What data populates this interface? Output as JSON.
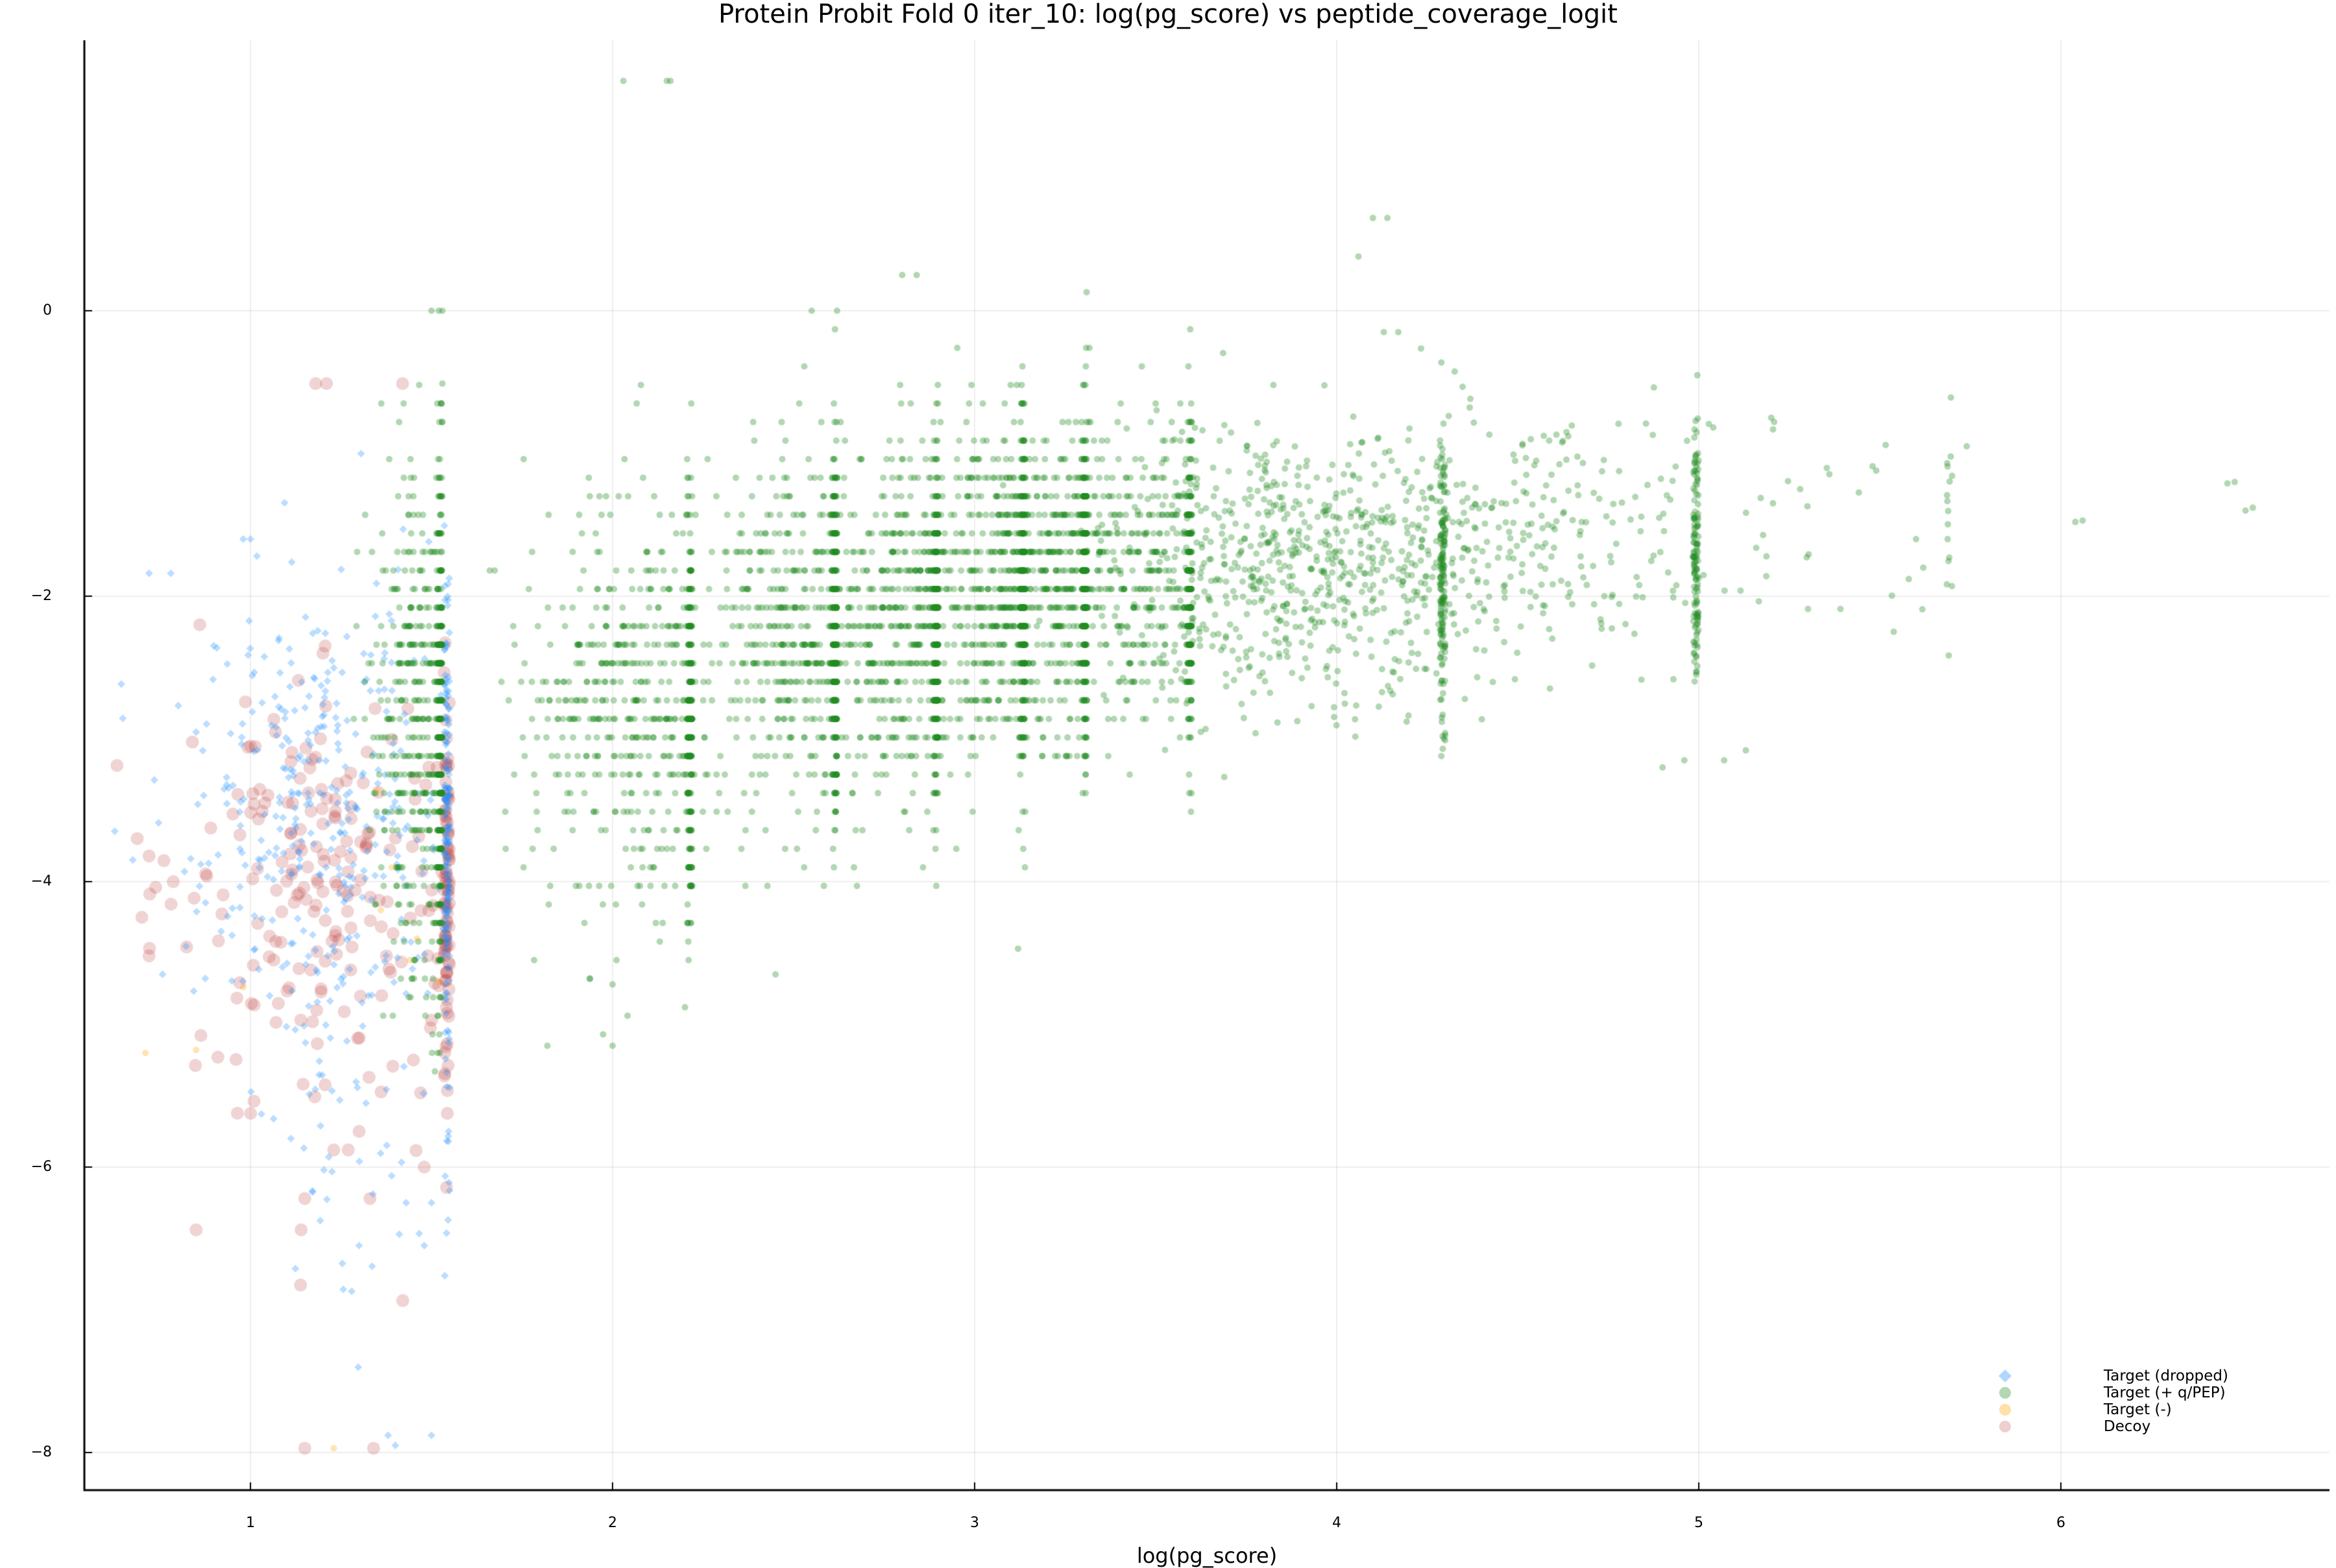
{
  "chart_data": {
    "type": "scatter",
    "title": "Protein Probit Fold 0 iter_10: log(pg_score) vs peptide_coverage_logit",
    "xlabel": "log(pg_score)",
    "ylabel": "",
    "xlim": [
      0.55,
      6.75
    ],
    "ylim": [
      -8.3,
      1.9
    ],
    "xticks": [
      1,
      2,
      3,
      4,
      5,
      6
    ],
    "yticks": [
      0,
      -2,
      -4,
      -6,
      -8
    ],
    "xtick_labels": [
      "1",
      "2",
      "3",
      "4",
      "5",
      "6"
    ],
    "ytick_labels": [
      "0",
      "−2",
      "−4",
      "−6",
      "−8"
    ],
    "grid": true,
    "legend_position": "bottom-right",
    "series": [
      {
        "name": "Target (dropped)",
        "marker": "diamond",
        "color": "#1e90ff",
        "alpha": 0.3,
        "size": 6,
        "approx_count": 600,
        "x_range": [
          0.72,
          1.55
        ],
        "y_range": [
          -7.95,
          -1.6
        ],
        "clusters": [
          {
            "cx": 1.2,
            "cy": -3.6,
            "sx": 0.2,
            "sy": 0.9,
            "n": 520,
            "xmax": 1.55
          },
          {
            "cx": 1.3,
            "cy": -5.8,
            "sx": 0.15,
            "sy": 0.6,
            "n": 40,
            "xmax": 1.55
          }
        ],
        "points": [
          [
            0.72,
            -1.84
          ],
          [
            0.78,
            -1.84
          ],
          [
            0.98,
            -1.6
          ],
          [
            1.0,
            -1.6
          ],
          [
            1.38,
            -7.88
          ],
          [
            1.5,
            -7.88
          ],
          [
            1.4,
            -7.95
          ],
          [
            1.43,
            -6.25
          ],
          [
            1.5,
            -6.25
          ],
          [
            1.48,
            -6.55
          ],
          [
            1.3,
            -6.55
          ]
        ]
      },
      {
        "name": "Target (+ q/PEP)",
        "marker": "circle",
        "color": "#228b22",
        "alpha": 0.35,
        "size": 5,
        "approx_count": 6500,
        "x_range": [
          1.3,
          6.53
        ],
        "y_range": [
          -5.15,
          1.61
        ],
        "clusters": [
          {
            "cx": 1.48,
            "cy": -2.9,
            "sx": 0.07,
            "sy": 0.9,
            "n": 700,
            "xmax": 1.53,
            "quantize_y": 0.13
          },
          {
            "cx": 2.05,
            "cy": -2.8,
            "sx": 0.15,
            "sy": 0.7,
            "n": 650,
            "xmax": 2.22,
            "quantize_y": 0.13
          },
          {
            "cx": 2.5,
            "cy": -2.3,
            "sx": 0.13,
            "sy": 0.65,
            "n": 650,
            "xmax": 2.62,
            "quantize_y": 0.13
          },
          {
            "cx": 2.8,
            "cy": -2.2,
            "sx": 0.12,
            "sy": 0.6,
            "n": 650,
            "xmax": 2.9,
            "quantize_y": 0.13
          },
          {
            "cx": 3.05,
            "cy": -2.0,
            "sx": 0.12,
            "sy": 0.6,
            "n": 650,
            "xmax": 3.14,
            "quantize_y": 0.13
          },
          {
            "cx": 3.25,
            "cy": -1.95,
            "sx": 0.12,
            "sy": 0.55,
            "n": 600,
            "xmax": 3.31,
            "quantize_y": 0.13
          },
          {
            "cx": 3.45,
            "cy": -1.9,
            "sx": 0.15,
            "sy": 0.55,
            "n": 600,
            "xmax": 3.6,
            "quantize_y": 0.13
          },
          {
            "cx": 3.85,
            "cy": -1.8,
            "sx": 0.25,
            "sy": 0.5,
            "n": 700,
            "xmax": 4.3
          },
          {
            "cx": 4.4,
            "cy": -1.65,
            "sx": 0.3,
            "sy": 0.45,
            "n": 500,
            "xmax": 5.0
          },
          {
            "cx": 5.1,
            "cy": -1.5,
            "sx": 0.3,
            "sy": 0.5,
            "n": 60,
            "xmax": 5.7
          }
        ],
        "points": [
          [
            2.03,
            1.61
          ],
          [
            2.15,
            1.61
          ],
          [
            2.16,
            1.61
          ],
          [
            4.06,
            0.38
          ],
          [
            4.1,
            0.65
          ],
          [
            4.14,
            0.65
          ],
          [
            2.8,
            0.25
          ],
          [
            2.84,
            0.25
          ],
          [
            1.5,
            0.0
          ],
          [
            1.52,
            0.0
          ],
          [
            1.53,
            0.0
          ],
          [
            2.55,
            0.0
          ],
          [
            2.62,
            0.0
          ],
          [
            4.13,
            -0.15
          ],
          [
            4.17,
            -0.15
          ],
          [
            1.53,
            -0.51
          ],
          [
            5.74,
            -0.95
          ],
          [
            6.04,
            -1.48
          ],
          [
            6.06,
            -1.47
          ],
          [
            6.46,
            -1.21
          ],
          [
            6.48,
            -1.2
          ],
          [
            6.51,
            -1.4
          ],
          [
            6.53,
            -1.38
          ],
          [
            5.48,
            -1.09
          ],
          [
            5.49,
            -1.12
          ],
          [
            5.6,
            -1.6
          ],
          [
            5.62,
            -1.8
          ],
          [
            5.58,
            -1.88
          ],
          [
            5.2,
            -0.75
          ],
          [
            5.28,
            -1.25
          ],
          [
            5.3,
            -1.37
          ],
          [
            5.13,
            -3.08
          ],
          [
            5.07,
            -3.15
          ],
          [
            4.96,
            -3.15
          ],
          [
            4.9,
            -3.2
          ],
          [
            1.82,
            -5.15
          ],
          [
            2.0,
            -5.15
          ],
          [
            3.12,
            -4.47
          ],
          [
            2.45,
            -4.65
          ],
          [
            2.0,
            -4.72
          ],
          [
            2.2,
            -4.88
          ]
        ]
      },
      {
        "name": "Target (-)",
        "marker": "circle",
        "color": "#ffa500",
        "alpha": 0.3,
        "size": 5,
        "approx_count": 10,
        "points": [
          [
            0.71,
            -5.2
          ],
          [
            0.85,
            -5.18
          ],
          [
            0.98,
            -4.74
          ],
          [
            1.23,
            -7.97
          ],
          [
            1.44,
            -4.55
          ],
          [
            1.46,
            -4.4
          ],
          [
            1.52,
            -4.7
          ],
          [
            1.39,
            -3.9
          ],
          [
            1.35,
            -3.36
          ],
          [
            1.36,
            -4.2
          ]
        ]
      },
      {
        "name": "Decoy",
        "marker": "circle",
        "color": "#b22222",
        "alpha": 0.2,
        "size": 10,
        "approx_count": 320,
        "clusters": [
          {
            "cx": 1.2,
            "cy": -4.0,
            "sx": 0.22,
            "sy": 0.7,
            "n": 280,
            "xmax": 1.55
          }
        ],
        "points": [
          [
            1.18,
            -0.51
          ],
          [
            1.21,
            -0.51
          ],
          [
            1.42,
            -0.51
          ],
          [
            0.86,
            -2.2
          ],
          [
            1.15,
            -6.22
          ],
          [
            1.33,
            -6.22
          ],
          [
            1.14,
            -6.44
          ],
          [
            0.85,
            -6.44
          ],
          [
            1.15,
            -7.97
          ],
          [
            1.34,
            -7.97
          ],
          [
            1.27,
            -5.88
          ],
          [
            1.23,
            -5.88
          ],
          [
            1.3,
            -5.75
          ],
          [
            1.48,
            -6.0
          ],
          [
            1.47,
            -5.48
          ],
          [
            1.52,
            -4.73
          ],
          [
            1.5,
            -4.97
          ],
          [
            1.45,
            -5.25
          ],
          [
            0.91,
            -5.23
          ],
          [
            0.72,
            -3.82
          ],
          [
            0.7,
            -4.25
          ],
          [
            0.72,
            -4.52
          ],
          [
            1.0,
            -3.05
          ],
          [
            1.2,
            -2.4
          ]
        ]
      }
    ]
  },
  "legend": {
    "items": [
      {
        "label": "Target (dropped)",
        "marker": "diamond",
        "color": "#1e90ff"
      },
      {
        "label": "Target (+ q/PEP)",
        "marker": "circle",
        "color": "#228b22"
      },
      {
        "label": "Target (-)",
        "marker": "circle",
        "color": "#ffa500"
      },
      {
        "label": "Decoy",
        "marker": "circle",
        "color": "#b22222"
      }
    ]
  }
}
